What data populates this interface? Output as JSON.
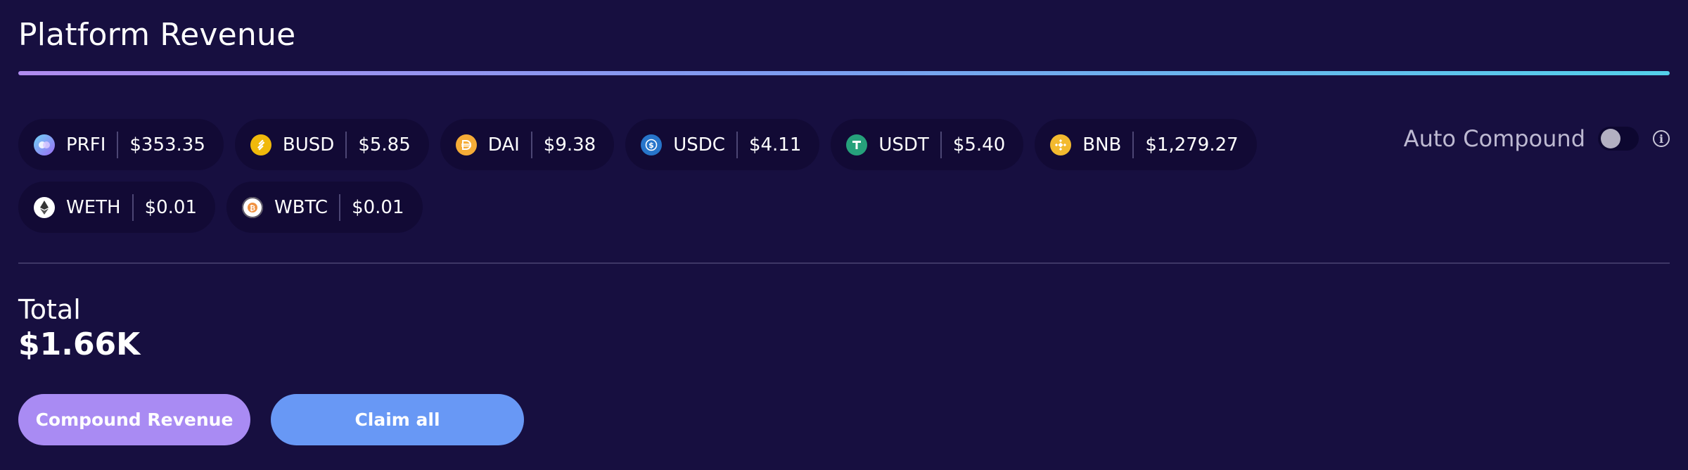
{
  "header": {
    "title": "Platform Revenue"
  },
  "tokens": [
    {
      "symbol": "PRFI",
      "amount": "$353.35",
      "icon": "prfi-icon",
      "color": "#8f7cf5"
    },
    {
      "symbol": "BUSD",
      "amount": "$5.85",
      "icon": "busd-icon",
      "color": "#f0b90b"
    },
    {
      "symbol": "DAI",
      "amount": "$9.38",
      "icon": "dai-icon",
      "color": "#f5ac37"
    },
    {
      "symbol": "USDC",
      "amount": "$4.11",
      "icon": "usdc-icon",
      "color": "#2775ca"
    },
    {
      "symbol": "USDT",
      "amount": "$5.40",
      "icon": "usdt-icon",
      "color": "#26a17b"
    },
    {
      "symbol": "BNB",
      "amount": "$1,279.27",
      "icon": "bnb-icon",
      "color": "#f3ba2f"
    },
    {
      "symbol": "WETH",
      "amount": "$0.01",
      "icon": "weth-icon",
      "color": "#ffffff"
    },
    {
      "symbol": "WBTC",
      "amount": "$0.01",
      "icon": "wbtc-icon",
      "color": "#f09242"
    }
  ],
  "auto_compound": {
    "label": "Auto Compound",
    "enabled": false
  },
  "total": {
    "label": "Total",
    "value": "$1.66K"
  },
  "actions": {
    "compound_label": "Compound Revenue",
    "claim_label": "Claim all"
  },
  "colors": {
    "background": "#170f40",
    "chip": "#120a35",
    "compound_button": "#a98bf3",
    "claim_button": "#6898f5"
  }
}
